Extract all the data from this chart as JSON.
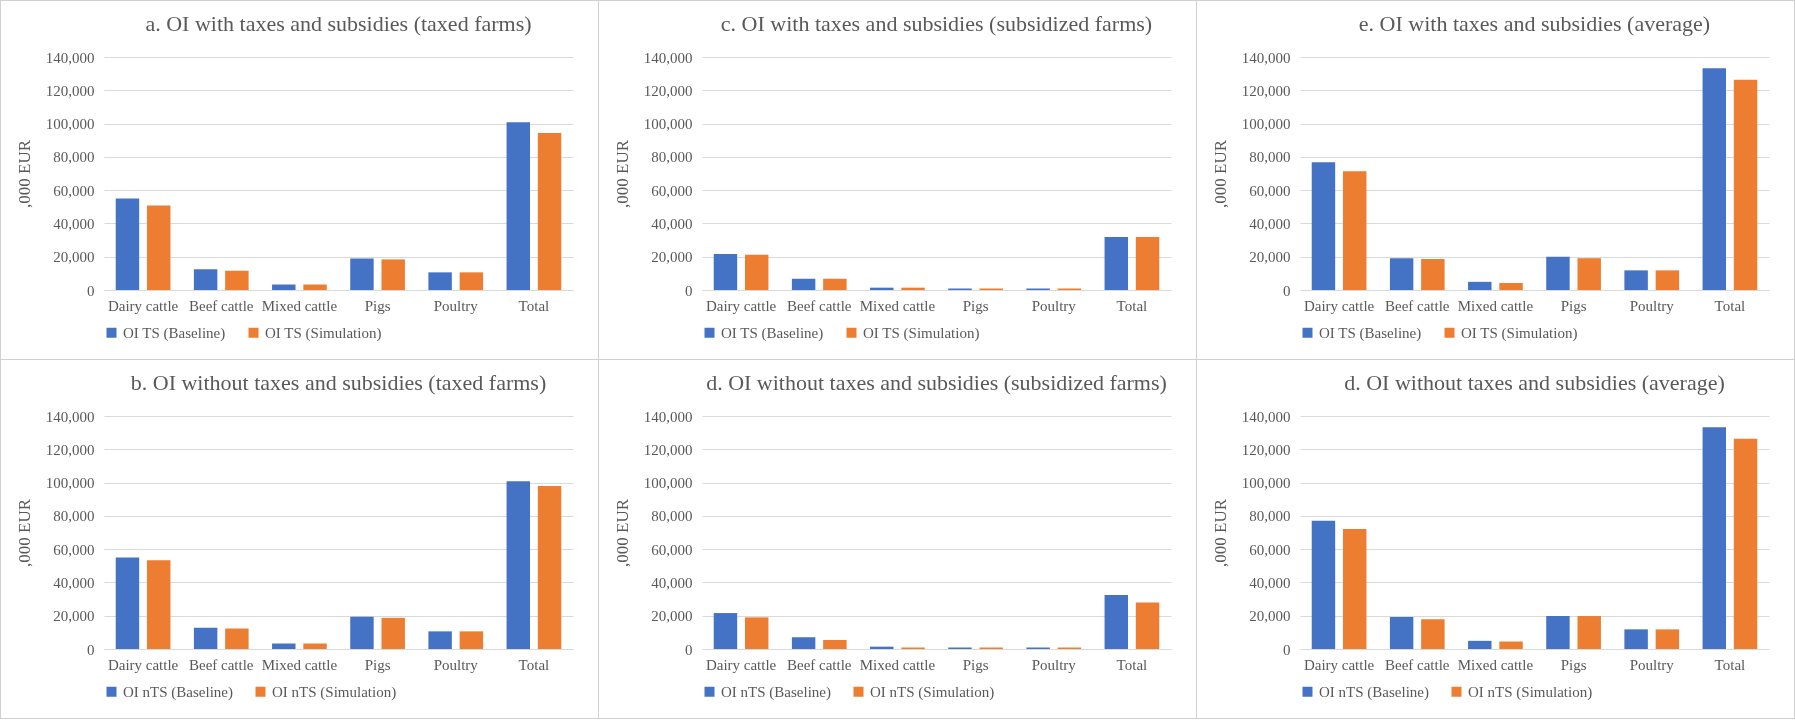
{
  "chart_data": [
    {
      "type": "bar",
      "title": "a. OI with taxes and subsidies (taxed farms)",
      "ylabel": ",000 EUR",
      "categories": [
        "Dairy cattle",
        "Beef cattle",
        "Mixed cattle",
        "Pigs",
        "Poultry",
        "Total"
      ],
      "series": [
        {
          "name": "OI TS (Baseline)",
          "color": "#4472c4",
          "values": [
            55000,
            12500,
            3300,
            18900,
            10600,
            100800
          ]
        },
        {
          "name": "OI TS (Simulation)",
          "color": "#ed7d31",
          "values": [
            50800,
            11600,
            3300,
            18400,
            10600,
            94400
          ]
        }
      ],
      "ylim": [
        0,
        140000
      ],
      "yticks": [
        {
          "value": 0,
          "label": "0"
        },
        {
          "value": 20000,
          "label": "20,000"
        },
        {
          "value": 40000,
          "label": "40,000"
        },
        {
          "value": 60000,
          "label": "60,000"
        },
        {
          "value": 80000,
          "label": "80,000"
        },
        {
          "value": 100000,
          "label": "100,000"
        },
        {
          "value": 120000,
          "label": "120,000"
        },
        {
          "value": 140000,
          "label": "140,000"
        }
      ],
      "grid": "y",
      "legend": "bottom"
    },
    {
      "type": "bar",
      "title": "c. OI with taxes and subsidies (subsidized farms)",
      "ylabel": ",000 EUR",
      "categories": [
        "Dairy cattle",
        "Beef cattle",
        "Mixed cattle",
        "Pigs",
        "Poultry",
        "Total"
      ],
      "series": [
        {
          "name": "OI TS (Baseline)",
          "color": "#4472c4",
          "values": [
            21700,
            6800,
            1400,
            900,
            900,
            31900
          ]
        },
        {
          "name": "OI TS (Simulation)",
          "color": "#ed7d31",
          "values": [
            21200,
            6800,
            1400,
            900,
            900,
            31900
          ]
        }
      ],
      "ylim": [
        0,
        140000
      ],
      "yticks": [
        {
          "value": 0,
          "label": "0"
        },
        {
          "value": 20000,
          "label": "20,000"
        },
        {
          "value": 40000,
          "label": "40,000"
        },
        {
          "value": 60000,
          "label": "60,000"
        },
        {
          "value": 80000,
          "label": "80,000"
        },
        {
          "value": 100000,
          "label": "100,000"
        },
        {
          "value": 120000,
          "label": "120,000"
        },
        {
          "value": 140000,
          "label": "140,000"
        }
      ],
      "grid": "y",
      "legend": "bottom"
    },
    {
      "type": "bar",
      "title": "e. OI with taxes and subsidies (average)",
      "ylabel": ",000 EUR",
      "categories": [
        "Dairy cattle",
        "Beef cattle",
        "Mixed cattle",
        "Pigs",
        "Poultry",
        "Total"
      ],
      "series": [
        {
          "name": "OI TS (Baseline)",
          "color": "#4472c4",
          "values": [
            76800,
            19100,
            4900,
            20000,
            11800,
            133200
          ]
        },
        {
          "name": "OI TS (Simulation)",
          "color": "#ed7d31",
          "values": [
            71400,
            18600,
            4200,
            19100,
            11800,
            126400
          ]
        }
      ],
      "ylim": [
        0,
        140000
      ],
      "yticks": [
        {
          "value": 0,
          "label": "0"
        },
        {
          "value": 20000,
          "label": "20,000"
        },
        {
          "value": 40000,
          "label": "40,000"
        },
        {
          "value": 60000,
          "label": "60,000"
        },
        {
          "value": 80000,
          "label": "80,000"
        },
        {
          "value": 100000,
          "label": "100,000"
        },
        {
          "value": 120000,
          "label": "120,000"
        },
        {
          "value": 140000,
          "label": "140,000"
        }
      ],
      "grid": "y",
      "legend": "bottom"
    },
    {
      "type": "bar",
      "title": "b. OI without taxes and subsidies (taxed farms)",
      "ylabel": ",000 EUR",
      "categories": [
        "Dairy cattle",
        "Beef cattle",
        "Mixed cattle",
        "Pigs",
        "Poultry",
        "Total"
      ],
      "series": [
        {
          "name": "OI nTS (Baseline)",
          "color": "#4472c4",
          "values": [
            55000,
            12700,
            3300,
            19400,
            10600,
            100800
          ]
        },
        {
          "name": "OI nTS (Simulation)",
          "color": "#ed7d31",
          "values": [
            53400,
            12300,
            3300,
            18700,
            10600,
            98000
          ]
        }
      ],
      "ylim": [
        0,
        140000
      ],
      "yticks": [
        {
          "value": 0,
          "label": "0"
        },
        {
          "value": 20000,
          "label": "20,000"
        },
        {
          "value": 40000,
          "label": "40,000"
        },
        {
          "value": 60000,
          "label": "60,000"
        },
        {
          "value": 80000,
          "label": "80,000"
        },
        {
          "value": 100000,
          "label": "100,000"
        },
        {
          "value": 120000,
          "label": "120,000"
        },
        {
          "value": 140000,
          "label": "140,000"
        }
      ],
      "grid": "y",
      "legend": "bottom"
    },
    {
      "type": "bar",
      "title": "d. OI without taxes and subsidies (subsidized farms)",
      "ylabel": ",000 EUR",
      "categories": [
        "Dairy cattle",
        "Beef cattle",
        "Mixed cattle",
        "Pigs",
        "Poultry",
        "Total"
      ],
      "series": [
        {
          "name": "OI nTS (Baseline)",
          "color": "#4472c4",
          "values": [
            21600,
            7000,
            1400,
            900,
            900,
            32400
          ]
        },
        {
          "name": "OI nTS (Simulation)",
          "color": "#ed7d31",
          "values": [
            19000,
            5400,
            900,
            900,
            900,
            28000
          ]
        }
      ],
      "ylim": [
        0,
        140000
      ],
      "yticks": [
        {
          "value": 0,
          "label": "0"
        },
        {
          "value": 20000,
          "label": "20,000"
        },
        {
          "value": 40000,
          "label": "40,000"
        },
        {
          "value": 60000,
          "label": "60,000"
        },
        {
          "value": 80000,
          "label": "80,000"
        },
        {
          "value": 100000,
          "label": "100,000"
        },
        {
          "value": 120000,
          "label": "120,000"
        },
        {
          "value": 140000,
          "label": "140,000"
        }
      ],
      "grid": "y",
      "legend": "bottom"
    },
    {
      "type": "bar",
      "title": "d. OI without taxes and subsidies (average)",
      "ylabel": ",000 EUR",
      "categories": [
        "Dairy cattle",
        "Beef cattle",
        "Mixed cattle",
        "Pigs",
        "Poultry",
        "Total"
      ],
      "series": [
        {
          "name": "OI nTS (Baseline)",
          "color": "#4472c4",
          "values": [
            77100,
            19300,
            4900,
            19800,
            11800,
            133200
          ]
        },
        {
          "name": "OI nTS (Simulation)",
          "color": "#ed7d31",
          "values": [
            72100,
            17900,
            4500,
            19800,
            11800,
            126300
          ]
        }
      ],
      "ylim": [
        0,
        140000
      ],
      "yticks": [
        {
          "value": 0,
          "label": "0"
        },
        {
          "value": 20000,
          "label": "20,000"
        },
        {
          "value": 40000,
          "label": "40,000"
        },
        {
          "value": 60000,
          "label": "60,000"
        },
        {
          "value": 80000,
          "label": "80,000"
        },
        {
          "value": 100000,
          "label": "100,000"
        },
        {
          "value": 120000,
          "label": "120,000"
        },
        {
          "value": 140000,
          "label": "140,000"
        }
      ],
      "grid": "y",
      "legend": "bottom"
    }
  ]
}
